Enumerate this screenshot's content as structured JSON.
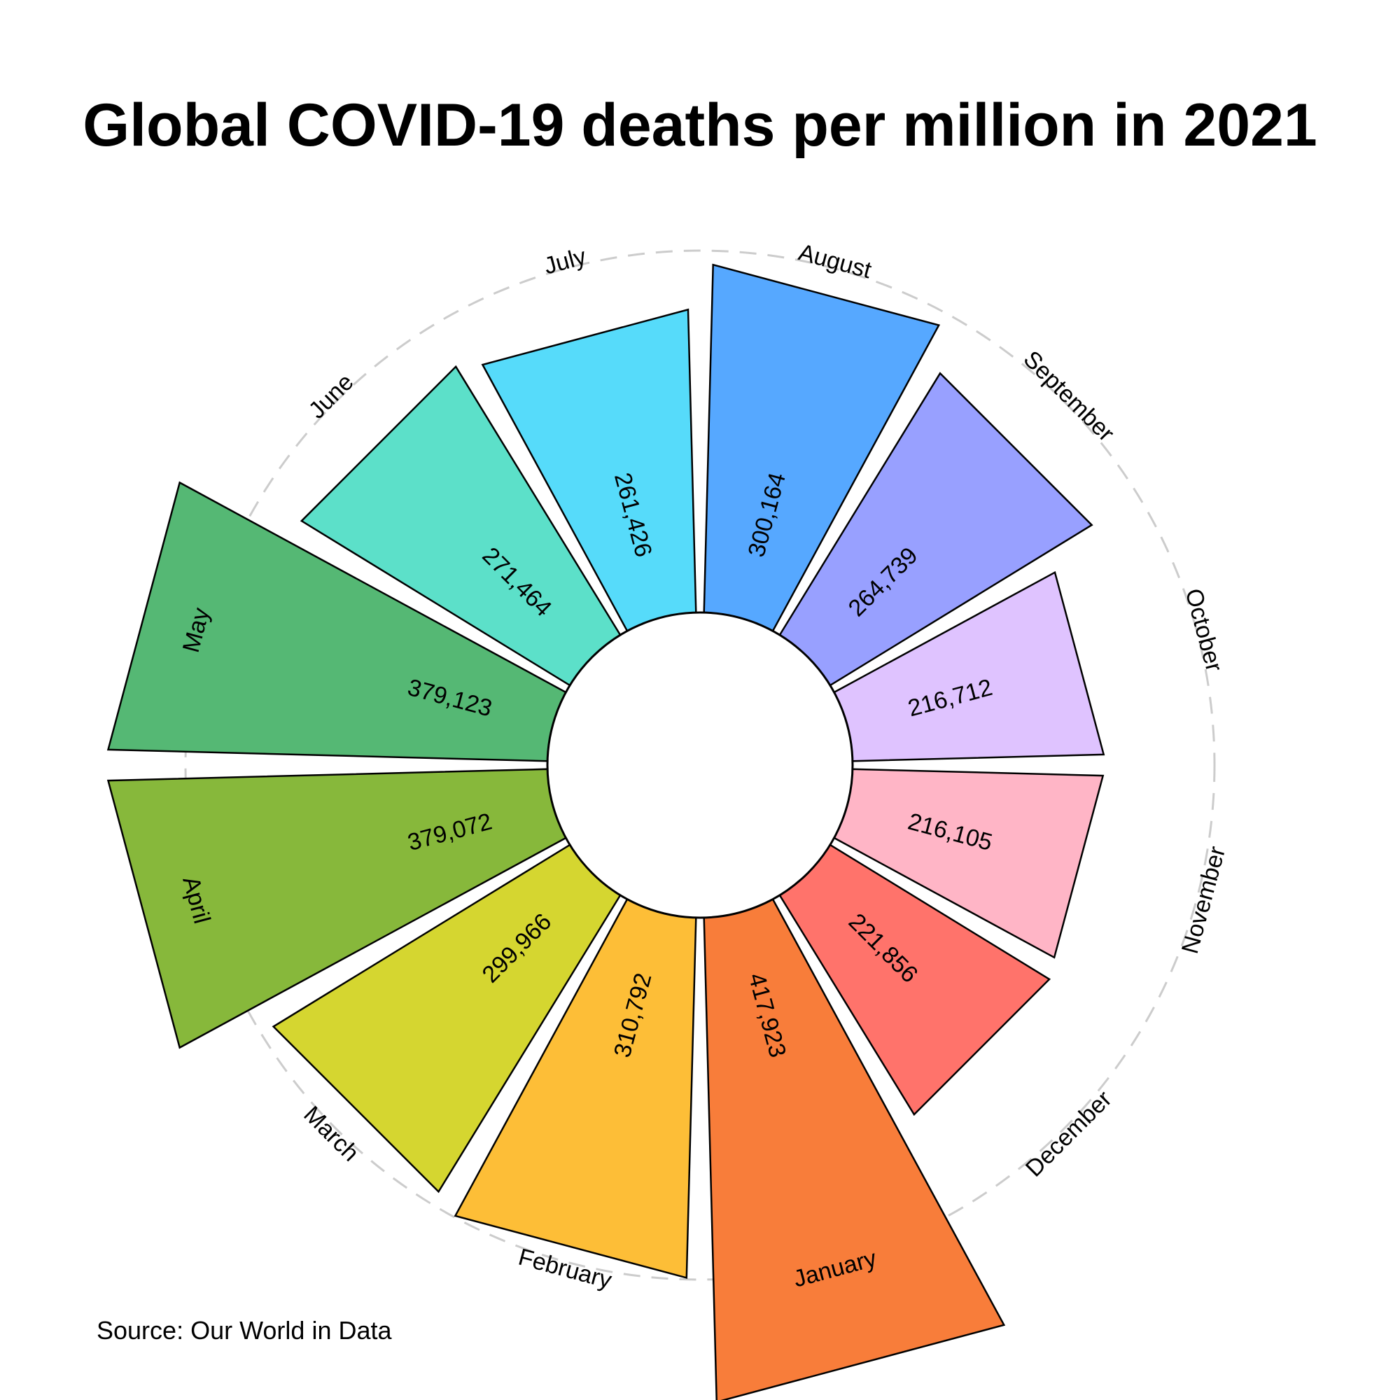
{
  "chart_data": {
    "type": "bar",
    "subtype": "circular",
    "title": "Global COVID-19 deaths per million in 2021",
    "source": "Source: Our World in Data",
    "categories": [
      "January",
      "February",
      "March",
      "April",
      "May",
      "June",
      "July",
      "August",
      "September",
      "October",
      "November",
      "December"
    ],
    "values": [
      417923,
      310792,
      299966,
      379072,
      379123,
      271464,
      261426,
      300164,
      264739,
      216712,
      216105,
      221856
    ],
    "value_labels": [
      "417,923",
      "310,792",
      "299,966",
      "379,072",
      "379,123",
      "271,464",
      "261,426",
      "300,164",
      "264,739",
      "216,712",
      "216,105",
      "221,856"
    ],
    "colors": [
      "#F87D3A",
      "#FDBE37",
      "#D5D630",
      "#87B83B",
      "#55B874",
      "#5CE0C9",
      "#56DBFA",
      "#56A8FF",
      "#98A0FF",
      "#DFC3FF",
      "#FFB5C6",
      "#FF736B"
    ],
    "grid": "dashed outer ring",
    "legend": "none"
  }
}
